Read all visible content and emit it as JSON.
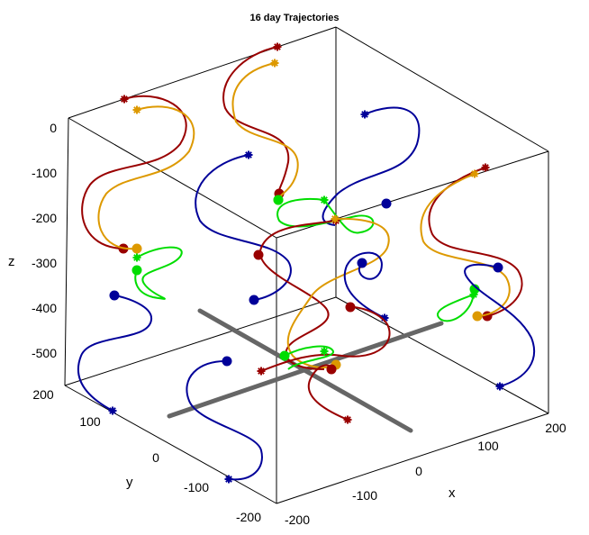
{
  "chart_data": {
    "type": "line",
    "title": "16 day Trajectories",
    "xlabel": "x",
    "ylabel": "y",
    "zlabel": "z",
    "xlim": [
      -200,
      200
    ],
    "ylim": [
      -200,
      200
    ],
    "zlim": [
      -550,
      0
    ],
    "x_ticks": [
      "-200",
      "-100",
      "0",
      "100",
      "200"
    ],
    "y_ticks": [
      "200",
      "100",
      "0",
      "-100",
      "-200"
    ],
    "z_ticks": [
      "0",
      "-100",
      "-200",
      "-300",
      "-400",
      "-500"
    ],
    "grid": false,
    "legend": false,
    "marker_legend": {
      "start": "dot",
      "end": "asterisk"
    },
    "colors": {
      "blue": "#000099",
      "red": "#990000",
      "orange": "#DD9900",
      "green": "#00DD00",
      "dark_line": "#666666"
    },
    "series": [
      {
        "color": "blue",
        "x": [
          160,
          80,
          160,
          80,
          160,
          80,
          160
        ],
        "y": [
          -180,
          -190,
          -200,
          -190,
          -180,
          -190,
          -200
        ],
        "z": [
          -550,
          -500,
          -450,
          -400,
          -350,
          -300,
          -250
        ]
      },
      {
        "color": "blue",
        "x": [
          -190,
          -110,
          -190,
          -110,
          -190
        ],
        "y": [
          140,
          150,
          160,
          150,
          140
        ],
        "z": [
          -550,
          -490,
          -430,
          -370,
          -310
        ]
      },
      {
        "color": "blue",
        "x": [
          -140,
          -60,
          -140,
          -60,
          -140
        ],
        "y": [
          -120,
          -130,
          -140,
          -130,
          -120
        ],
        "z": [
          -550,
          -500,
          -450,
          -400,
          -350
        ]
      },
      {
        "color": "red",
        "x": [
          -30,
          40,
          -30,
          40,
          -30,
          40
        ],
        "y": [
          10,
          20,
          30,
          20,
          10,
          20
        ],
        "z": [
          -490,
          -430,
          -370,
          -310,
          -250,
          -190
        ]
      },
      {
        "color": "green",
        "x": [
          -20,
          30,
          -30,
          20,
          -10
        ],
        "y": [
          10,
          20,
          0,
          10,
          20
        ],
        "z": [
          -470,
          -460,
          -480,
          -460,
          -470
        ]
      }
    ]
  }
}
